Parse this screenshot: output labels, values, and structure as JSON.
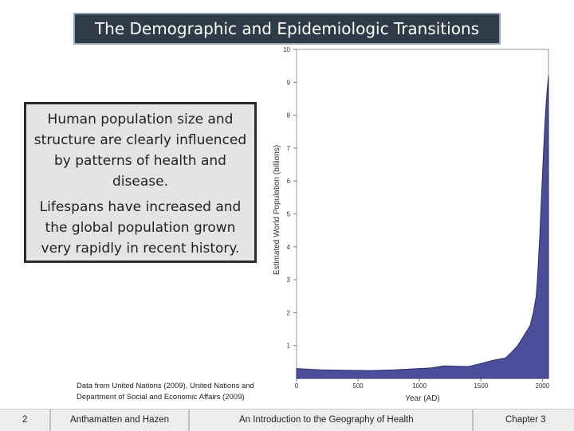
{
  "slide": {
    "title": "The Demographic and Epidemiologic Transitions",
    "paragraphs": [
      "Human population size and structure are clearly influenced by patterns of health and disease.",
      "Lifespans have increased and the global population grown very rapidly in recent history."
    ],
    "source": "Data from United Nations (2009), United Nations and Department of Social and Economic Affairs (2009)"
  },
  "footer": {
    "page_number": "2",
    "authors": "Anthamatten and Hazen",
    "book": "An Introduction to the Geography of Health",
    "chapter": "Chapter 3"
  },
  "colors": {
    "title_bg": "#2f3b48",
    "area_fill": "#4b4e9b",
    "area_stroke": "#2b2d6b"
  },
  "chart_data": {
    "type": "area",
    "xlabel": "Year (AD)",
    "ylabel": "Estimated World Population (billions)",
    "xlim": [
      0,
      2050
    ],
    "ylim": [
      0,
      10
    ],
    "xticks": [
      0,
      500,
      1000,
      1500,
      2000
    ],
    "yticks": [
      1,
      2,
      3,
      4,
      5,
      6,
      7,
      8,
      9,
      10
    ],
    "x": [
      0,
      200,
      400,
      600,
      800,
      1000,
      1100,
      1200,
      1300,
      1400,
      1500,
      1600,
      1700,
      1750,
      1800,
      1850,
      1900,
      1927,
      1950,
      1960,
      1970,
      1980,
      1990,
      2000,
      2010,
      2020,
      2030,
      2040,
      2050
    ],
    "y": [
      0.3,
      0.26,
      0.25,
      0.24,
      0.26,
      0.3,
      0.32,
      0.38,
      0.37,
      0.36,
      0.45,
      0.55,
      0.62,
      0.8,
      1.0,
      1.3,
      1.6,
      2.0,
      2.5,
      3.0,
      3.7,
      4.4,
      5.3,
      6.1,
      6.9,
      7.7,
      8.3,
      8.8,
      9.2
    ],
    "grid": false
  }
}
